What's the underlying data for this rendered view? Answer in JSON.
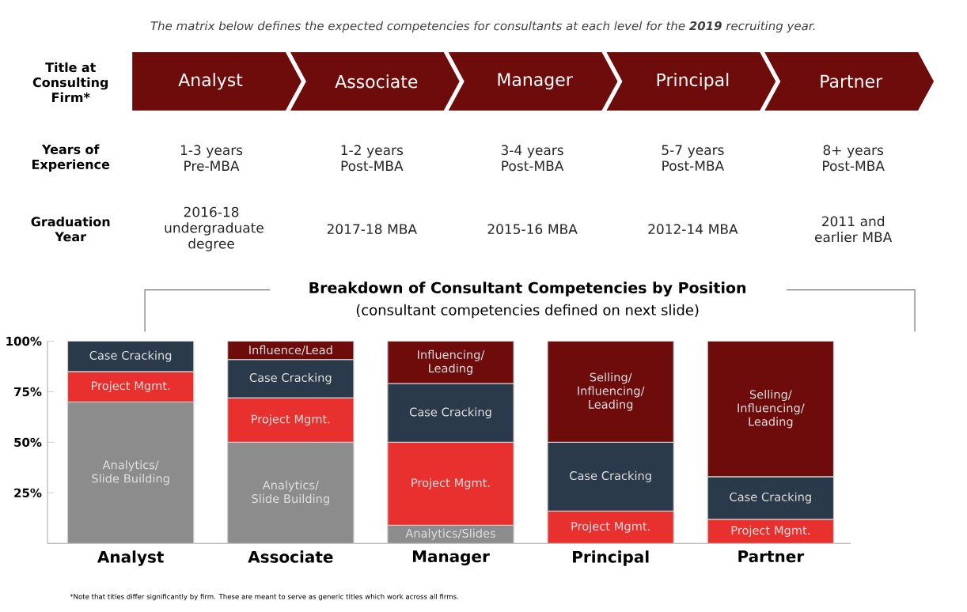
{
  "chart_data": {
    "type": "bar",
    "stacked": true,
    "title": "Breakdown of Consultant Competencies by Position",
    "subtitle": "(consultant competencies defined on next slide)",
    "categories": [
      "Analyst",
      "Associate",
      "Manager",
      "Principal",
      "Partner"
    ],
    "series": [
      {
        "color": "#8c8c8c",
        "values": [
          70,
          50,
          9,
          null,
          null
        ]
      },
      {
        "color": "#e8312f",
        "values": [
          15,
          22,
          41,
          16,
          12
        ]
      },
      {
        "color": "#2b3a4a",
        "values": [
          15,
          19,
          29,
          34,
          21
        ]
      },
      {
        "color": "#6e0b0b",
        "values": [
          null,
          9,
          21,
          50,
          67
        ]
      }
    ],
    "ylim": [
      0,
      100
    ],
    "yticks": [
      {
        "value": 25,
        "label": "25%"
      },
      {
        "value": 50,
        "label": "50%"
      },
      {
        "value": 75,
        "label": "75%"
      },
      {
        "value": 100,
        "label": "100%"
      }
    ],
    "annotations": [
      "The matrix below defines the expected competencies for consultants at each level for the **2019** recruiting year.",
      "Title at Consulting Firm*",
      "Years of Experience",
      "Graduation Year",
      "1-3 years Pre-MBA",
      "1-2 years Post-MBA",
      "3-4 years Post-MBA",
      "5-7 years Post-MBA",
      "8+ years Post-MBA",
      "2016-18 undergraduate degree",
      "2017-18 MBA",
      "2015-16 MBA",
      "2012-14 MBA",
      "2011 and earlier MBA",
      "*Note that titles differ significantly by firm. These are meant to serve as generic titles which work across all firms.",
      "Analytics/ Slide Building",
      "Project Mgmt.",
      "Case Cracking",
      "Analytics/ Slide Building",
      "Project Mgmt.",
      "Case Cracking",
      "Influence/Lead",
      "Analytics/Slides",
      "Project Mgmt.",
      "Case Cracking",
      "Influencing/ Leading",
      "Project Mgmt.",
      "Case Cracking",
      "Selling/ Influencing/ Leading",
      "Project Mgmt.",
      "Case Cracking",
      "Selling/ Influencing/ Leading"
    ]
  }
}
